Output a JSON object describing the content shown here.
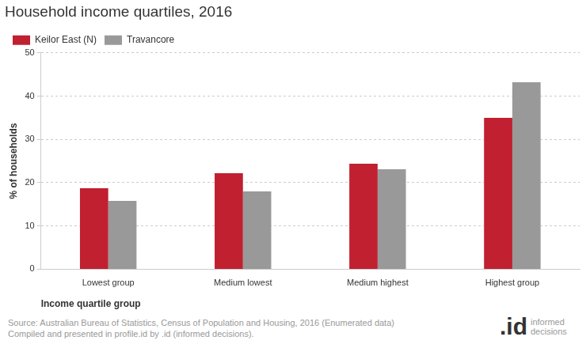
{
  "chart_data": {
    "type": "bar",
    "title": "Household income quartiles, 2016",
    "x_label": "Income quartile group",
    "y_label": "% of households",
    "categories": [
      "Lowest group",
      "Medium lowest",
      "Medium highest",
      "Highest group"
    ],
    "series": [
      {
        "name": "Keilor East (N)",
        "color": "#c0202f",
        "values": [
          18.7,
          22.2,
          24.4,
          35.0
        ]
      },
      {
        "name": "Travancore",
        "color": "#999999",
        "values": [
          15.8,
          18.0,
          23.1,
          43.2
        ]
      }
    ],
    "ylim": [
      0,
      50
    ],
    "yticks": [
      0,
      10,
      20,
      30,
      40,
      50
    ],
    "grid": true,
    "legend": "top-left",
    "source": [
      "Source: Australian Bureau of Statistics, Census of Population and Housing, 2016 (Enumerated data)",
      "Compiled and presented in profile.id by .id (informed decisions)."
    ],
    "logo": {
      "mark": ".id",
      "text": "informed decisions"
    }
  }
}
